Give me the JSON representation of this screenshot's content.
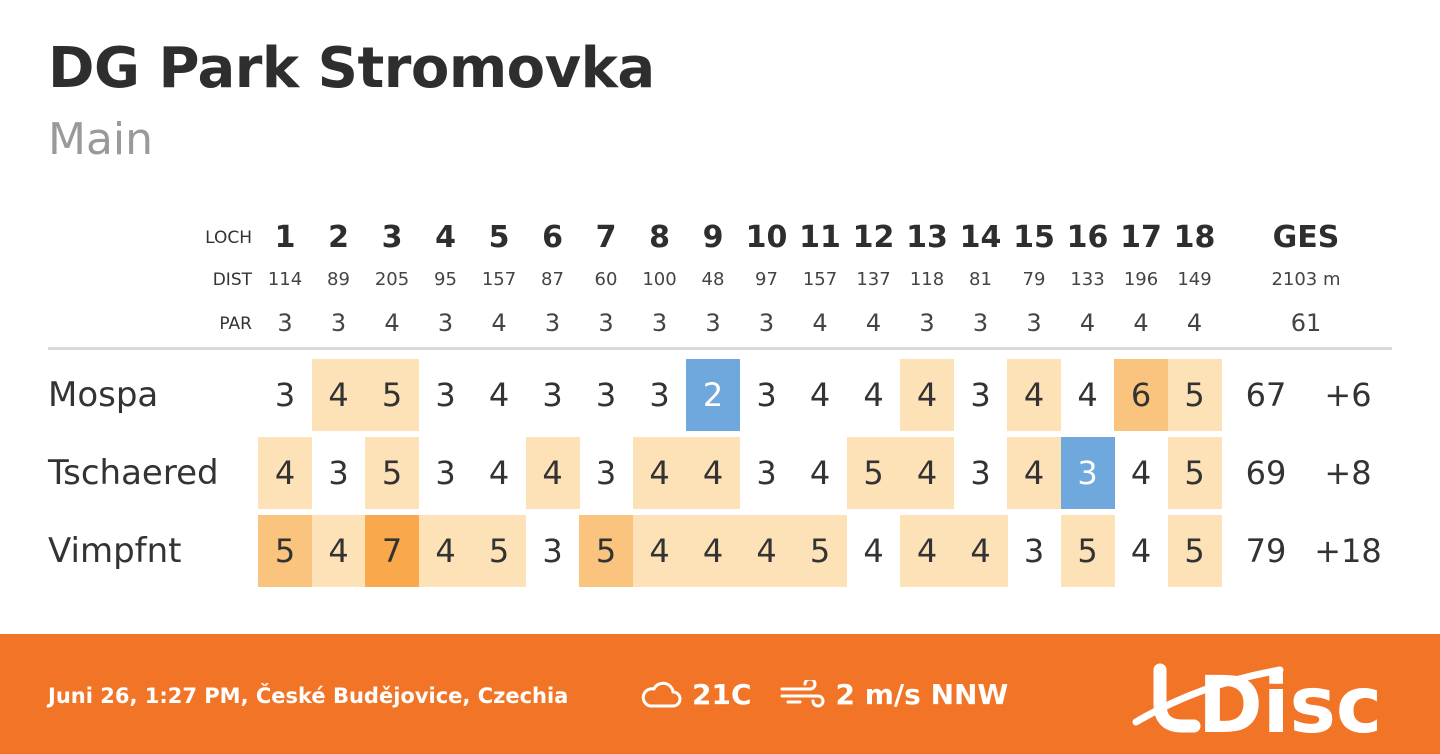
{
  "header": {
    "course": "DG Park Stromovka",
    "layout": "Main"
  },
  "labels": {
    "hole": "LOCH",
    "dist": "DIST",
    "par": "PAR",
    "total": "GES"
  },
  "holes": [
    {
      "n": "1",
      "dist": "114",
      "par": "3"
    },
    {
      "n": "2",
      "dist": "89",
      "par": "3"
    },
    {
      "n": "3",
      "dist": "205",
      "par": "4"
    },
    {
      "n": "4",
      "dist": "95",
      "par": "3"
    },
    {
      "n": "5",
      "dist": "157",
      "par": "4"
    },
    {
      "n": "6",
      "dist": "87",
      "par": "3"
    },
    {
      "n": "7",
      "dist": "60",
      "par": "3"
    },
    {
      "n": "8",
      "dist": "100",
      "par": "3"
    },
    {
      "n": "9",
      "dist": "48",
      "par": "3"
    },
    {
      "n": "10",
      "dist": "97",
      "par": "3"
    },
    {
      "n": "11",
      "dist": "157",
      "par": "4"
    },
    {
      "n": "12",
      "dist": "137",
      "par": "4"
    },
    {
      "n": "13",
      "dist": "118",
      "par": "3"
    },
    {
      "n": "14",
      "dist": "81",
      "par": "3"
    },
    {
      "n": "15",
      "dist": "79",
      "par": "3"
    },
    {
      "n": "16",
      "dist": "133",
      "par": "4"
    },
    {
      "n": "17",
      "dist": "196",
      "par": "4"
    },
    {
      "n": "18",
      "dist": "149",
      "par": "4"
    }
  ],
  "totals": {
    "dist": "2103 m",
    "par": "61"
  },
  "players": [
    {
      "name": "Mospa",
      "scores": [
        "3",
        "4",
        "5",
        "3",
        "4",
        "3",
        "3",
        "3",
        "2",
        "3",
        "4",
        "4",
        "4",
        "3",
        "4",
        "4",
        "6",
        "5"
      ],
      "total": "67",
      "diff": "+6"
    },
    {
      "name": "Tschaered",
      "scores": [
        "4",
        "3",
        "5",
        "3",
        "4",
        "4",
        "3",
        "4",
        "4",
        "3",
        "4",
        "5",
        "4",
        "3",
        "4",
        "3",
        "4",
        "5"
      ],
      "total": "69",
      "diff": "+8"
    },
    {
      "name": "Vimpfnt",
      "scores": [
        "5",
        "4",
        "7",
        "4",
        "5",
        "3",
        "5",
        "4",
        "4",
        "4",
        "5",
        "4",
        "4",
        "4",
        "3",
        "5",
        "4",
        "5"
      ],
      "total": "79",
      "diff": "+18"
    }
  ],
  "colors": {
    "bogey": "#fde2b8",
    "double": "#fbc47e",
    "triple": "#f9a94c",
    "birdie": "#6ea8dc",
    "footer": "#f27527"
  },
  "footer": {
    "info": "Juni 26, 1:27 PM, České Budějovice, Czechia",
    "temp": "21C",
    "wind": "2 m/s NNW",
    "weather_icon": "cloud-icon",
    "wind_icon": "wind-icon",
    "logo": "UDisc"
  }
}
